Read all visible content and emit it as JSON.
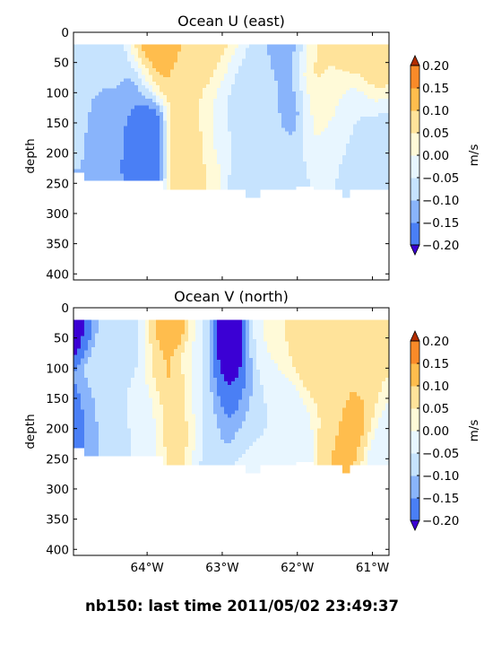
{
  "figure_title": "nb150: last time 2011/05/02 23:49:37",
  "colormap": [
    "#2a2aee",
    "#4a7ff5",
    "#89b4fb",
    "#c6e3fe",
    "#e8f6ff",
    "#fffad8",
    "#ffe39a",
    "#ffbd4d",
    "#fa8a28",
    "#e84b10"
  ],
  "extend_low": "#3b00d4",
  "extend_high": "#b32d00",
  "chart_data": [
    {
      "type": "contourf",
      "title": "Ocean U (east)",
      "xlabel": "",
      "ylabel": "depth",
      "xlim": [
        -64.98,
        -60.78
      ],
      "ylim": [
        410,
        0
      ],
      "xticks": [
        -64,
        -63,
        -62,
        -61
      ],
      "xticklabels": [
        "64°W",
        "63°W",
        "62°W",
        "61°W"
      ],
      "xticklabels_visible": false,
      "yticks": [
        0,
        50,
        100,
        150,
        200,
        250,
        300,
        350,
        400
      ],
      "colorbar": {
        "label": "m/s",
        "levels": [
          -0.2,
          -0.15,
          -0.1,
          -0.05,
          0.0,
          0.05,
          0.1,
          0.15,
          0.2
        ],
        "ticklabels": [
          "−0.20",
          "−0.15",
          "−0.10",
          "−0.05",
          "0.00",
          "0.05",
          "0.10",
          "0.15",
          "0.20"
        ],
        "extend": "both"
      },
      "depth_top": 20,
      "depth_bottom": [
        [
          -64.98,
          232
        ],
        [
          -64.82,
          245
        ],
        [
          -64.0,
          245
        ],
        [
          -63.8,
          260
        ],
        [
          -62.9,
          260
        ],
        [
          -62.7,
          273
        ],
        [
          -62.5,
          260
        ],
        [
          -62.1,
          260
        ],
        [
          -62.0,
          255
        ],
        [
          -61.8,
          260
        ],
        [
          -61.5,
          260
        ],
        [
          -61.4,
          273
        ],
        [
          -61.3,
          260
        ],
        [
          -60.78,
          260
        ]
      ],
      "field": [
        [
          -64.98,
          20,
          200,
          -0.14
        ],
        [
          -64.85,
          35,
          60,
          -0.04
        ],
        [
          -64.88,
          120,
          120,
          -0.06
        ],
        [
          -64.75,
          150,
          100,
          -0.12
        ],
        [
          -64.45,
          140,
          110,
          -0.13
        ],
        [
          -64.4,
          70,
          70,
          -0.06
        ],
        [
          -64.15,
          80,
          100,
          -0.16
        ],
        [
          -64.05,
          180,
          80,
          -0.2
        ],
        [
          -63.95,
          60,
          55,
          0.12
        ],
        [
          -64.0,
          30,
          40,
          0.22
        ],
        [
          -63.8,
          30,
          55,
          0.14
        ],
        [
          -63.6,
          50,
          70,
          0.08
        ],
        [
          -63.45,
          180,
          90,
          0.09
        ],
        [
          -63.4,
          130,
          60,
          0.05
        ],
        [
          -63.3,
          220,
          60,
          0.05
        ],
        [
          -63.1,
          50,
          90,
          0.09
        ],
        [
          -63.05,
          160,
          80,
          -0.01
        ],
        [
          -62.9,
          110,
          90,
          -0.09
        ],
        [
          -62.75,
          190,
          90,
          -0.07
        ],
        [
          -62.55,
          150,
          110,
          -0.04
        ],
        [
          -62.35,
          110,
          100,
          -0.07
        ],
        [
          -62.2,
          80,
          80,
          -0.12
        ],
        [
          -62.05,
          40,
          50,
          -0.18
        ],
        [
          -62.05,
          120,
          60,
          -0.15
        ],
        [
          -61.85,
          50,
          60,
          0.1
        ],
        [
          -61.75,
          110,
          80,
          0.06
        ],
        [
          -61.6,
          160,
          100,
          -0.02
        ],
        [
          -61.45,
          90,
          80,
          0.03
        ],
        [
          -61.3,
          40,
          50,
          0.12
        ],
        [
          -61.25,
          140,
          100,
          -0.06
        ],
        [
          -61.0,
          60,
          70,
          0.09
        ],
        [
          -60.9,
          200,
          110,
          -0.07
        ],
        [
          -61.15,
          240,
          60,
          -0.09
        ],
        [
          -62.2,
          230,
          70,
          -0.08
        ]
      ]
    },
    {
      "type": "contourf",
      "title": "Ocean V (north)",
      "xlabel": "",
      "ylabel": "depth",
      "xlim": [
        -64.98,
        -60.78
      ],
      "ylim": [
        410,
        0
      ],
      "xticks": [
        -64,
        -63,
        -62,
        -61
      ],
      "xticklabels": [
        "64°W",
        "63°W",
        "62°W",
        "61°W"
      ],
      "xticklabels_visible": true,
      "yticks": [
        0,
        50,
        100,
        150,
        200,
        250,
        300,
        350,
        400
      ],
      "colorbar": {
        "label": "m/s",
        "levels": [
          -0.2,
          -0.15,
          -0.1,
          -0.05,
          0.0,
          0.05,
          0.1,
          0.15,
          0.2
        ],
        "ticklabels": [
          "−0.20",
          "−0.15",
          "−0.10",
          "−0.05",
          "0.00",
          "0.05",
          "0.10",
          "0.15",
          "0.20"
        ],
        "extend": "both"
      },
      "depth_top": 20,
      "depth_bottom": [
        [
          -64.98,
          232
        ],
        [
          -64.82,
          245
        ],
        [
          -64.0,
          245
        ],
        [
          -63.8,
          260
        ],
        [
          -62.9,
          260
        ],
        [
          -62.7,
          273
        ],
        [
          -62.5,
          260
        ],
        [
          -62.1,
          260
        ],
        [
          -62.0,
          255
        ],
        [
          -61.8,
          260
        ],
        [
          -61.5,
          260
        ],
        [
          -61.4,
          273
        ],
        [
          -61.3,
          260
        ],
        [
          -60.78,
          260
        ]
      ],
      "field": [
        [
          -64.95,
          40,
          50,
          -0.22
        ],
        [
          -64.9,
          200,
          90,
          -0.16
        ],
        [
          -64.55,
          80,
          100,
          -0.06
        ],
        [
          -64.5,
          190,
          110,
          -0.07
        ],
        [
          -64.15,
          60,
          60,
          -0.09
        ],
        [
          -64.0,
          170,
          90,
          -0.03
        ],
        [
          -63.85,
          60,
          60,
          0.1
        ],
        [
          -63.7,
          120,
          90,
          0.12
        ],
        [
          -63.55,
          200,
          60,
          0.08
        ],
        [
          -63.7,
          40,
          35,
          0.18
        ],
        [
          -63.35,
          90,
          100,
          -0.02
        ],
        [
          -63.2,
          190,
          90,
          -0.07
        ],
        [
          -62.95,
          80,
          80,
          -0.24
        ],
        [
          -62.85,
          150,
          80,
          -0.2
        ],
        [
          -62.65,
          190,
          80,
          -0.07
        ],
        [
          -62.4,
          120,
          110,
          -0.04
        ],
        [
          -62.2,
          60,
          60,
          0.06
        ],
        [
          -62.05,
          200,
          80,
          -0.04
        ],
        [
          -61.75,
          80,
          90,
          0.09
        ],
        [
          -61.55,
          140,
          100,
          0.05
        ],
        [
          -61.4,
          220,
          70,
          0.11
        ],
        [
          -61.2,
          180,
          60,
          0.15
        ],
        [
          -61.05,
          120,
          80,
          0.07
        ],
        [
          -60.9,
          60,
          60,
          0.05
        ],
        [
          -60.85,
          220,
          90,
          -0.05
        ],
        [
          -61.6,
          50,
          40,
          0.1
        ],
        [
          -62.6,
          240,
          60,
          -0.03
        ]
      ]
    }
  ]
}
